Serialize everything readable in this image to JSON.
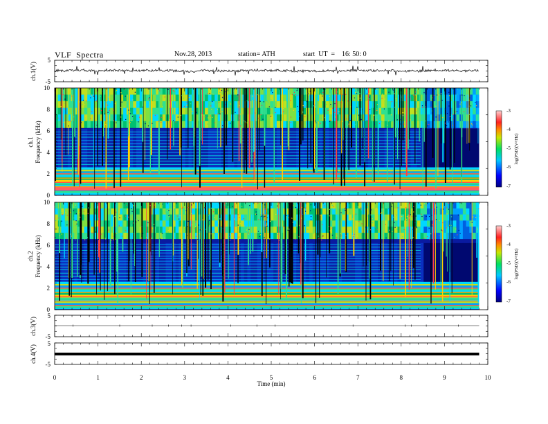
{
  "header": {
    "title": "VLF  Spectra",
    "date": "Nov.28, 2013",
    "station": "station= ATH",
    "start": "start  UT  =    16: 50: 0"
  },
  "chart_data": {
    "type": "heatmap",
    "time_axis": {
      "label": "Time  (min)",
      "range": [
        0,
        10
      ],
      "ticks": [
        "0",
        "1",
        "2",
        "3",
        "4",
        "5",
        "6",
        "7",
        "8",
        "9",
        "10"
      ],
      "data_end_min": 9.8
    },
    "channels": [
      {
        "name": "ch.1",
        "kind": "waveform",
        "ylabel": "ch.1(V)",
        "ylim": [
          -5,
          5
        ],
        "tick_labels": [
          "5",
          "-5"
        ]
      },
      {
        "name": "ch.1",
        "kind": "spectrogram",
        "ylabel_channel": "ch.1",
        "ylabel": "Frequency  (kHz)",
        "ylim": [
          0,
          10
        ],
        "tick_labels": [
          "0",
          "2",
          "4",
          "6",
          "8",
          "10"
        ],
        "colorbar": {
          "label": "log(PSD)(V²/Hz)",
          "range": [
            -7,
            -3
          ],
          "tick_labels": [
            "-3",
            "-4",
            "-5",
            "-6",
            "-7"
          ]
        }
      },
      {
        "name": "ch.2",
        "kind": "spectrogram",
        "ylabel_channel": "ch.2",
        "ylabel": "Frequency  (kHz)",
        "ylim": [
          0,
          10
        ],
        "tick_labels": [
          "0",
          "2",
          "4",
          "6",
          "8",
          "10"
        ],
        "colorbar": {
          "label": "log(PSD)(V²/Hz)",
          "range": [
            -7,
            -3
          ],
          "tick_labels": [
            "-3",
            "-4",
            "-5",
            "-6",
            "-7"
          ]
        }
      },
      {
        "name": "ch.3",
        "kind": "waveform",
        "ylabel": "ch.3(V)",
        "ylim": [
          -5,
          5
        ],
        "tick_labels": [
          "5",
          "-5"
        ]
      },
      {
        "name": "ch.4",
        "kind": "waveform",
        "ylabel": "ch.4(V)",
        "ylim": [
          -5,
          5
        ],
        "tick_labels": [
          "5",
          "-5"
        ]
      }
    ],
    "features": {
      "strong_bands_khz": [
        0.4,
        0.8,
        1.2,
        1.6,
        2.0
      ],
      "spectral_change_at_min": 8.45,
      "sferics": "vertical broadband impulses throughout"
    }
  }
}
